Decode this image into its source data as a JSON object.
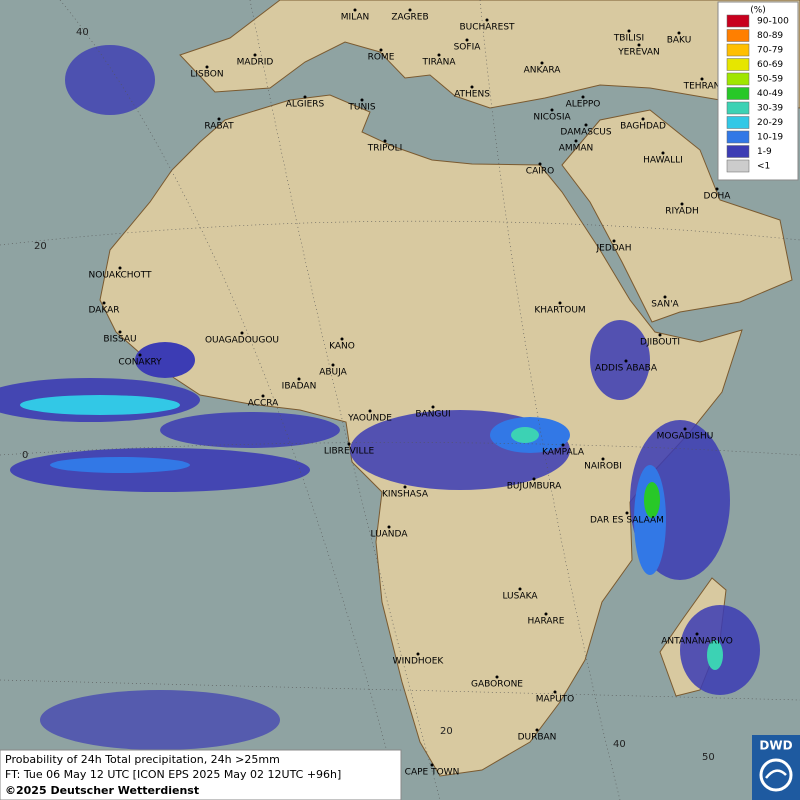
{
  "legend": {
    "unit": "(%)",
    "entries": [
      {
        "label": "90-100",
        "color": "#c8001e"
      },
      {
        "label": "80-89",
        "color": "#ff7f00"
      },
      {
        "label": "70-79",
        "color": "#ffbf00"
      },
      {
        "label": "60-69",
        "color": "#e6e600"
      },
      {
        "label": "50-59",
        "color": "#a0e600"
      },
      {
        "label": "40-49",
        "color": "#28c828"
      },
      {
        "label": "30-39",
        "color": "#3cd2b4"
      },
      {
        "label": "20-29",
        "color": "#32c8e6"
      },
      {
        "label": "10-19",
        "color": "#3278e6"
      },
      {
        "label": "1-9",
        "color": "#3c3cb4"
      },
      {
        "label": "<1",
        "color": "#cccccc"
      }
    ]
  },
  "cities": [
    "MILAN",
    "ZAGREB",
    "BUCHAREST",
    "SOFIA",
    "ROME",
    "TIRANA",
    "ANKARA",
    "TBILISI",
    "BAKU",
    "YEREVAN",
    "TEHRAN",
    "MADRID",
    "LISBON",
    "ALGIERS",
    "TUNIS",
    "ATHENS",
    "ALEPPO",
    "NICOSIA",
    "RABAT",
    "BAGHDAD",
    "DAMASCUS",
    "AMMAN",
    "TRIPOLI",
    "HAWALLI",
    "CAIRO",
    "DOHA",
    "RIYADH",
    "JEDDAH",
    "NOUAKCHOTT",
    "DAKAR",
    "SAN'A",
    "KHARTOUM",
    "BISSAU",
    "DJIBOUTI",
    "OUAGADOUGOU",
    "KANO",
    "CONAKRY",
    "ADDIS ABABA",
    "ABUJA",
    "IBADAN",
    "ACCRA",
    "YAOUNDE",
    "BANGUI",
    "MOGADISHU",
    "LIBREVILLE",
    "KAMPALA",
    "NAIROBI",
    "BUJUMBURA",
    "KINSHASA",
    "DAR ES SALAAM",
    "LUANDA",
    "LUSAKA",
    "HARARE",
    "ANTANANARIVO",
    "WINDHOEK",
    "GABORONE",
    "MAPUTO",
    "DURBAN",
    "CAPE TOWN"
  ],
  "graticule_labels": [
    "40",
    "20",
    "0",
    "20",
    "40",
    "50"
  ],
  "footer": [
    "Probability of 24h Total precipitation, 24h >25mm",
    "FT: Tue 06 May 12 UTC [ICON EPS 2025 May 02 12UTC +96h]",
    "©2025 Deutscher Wetterdienst"
  ],
  "logo": "DWD"
}
